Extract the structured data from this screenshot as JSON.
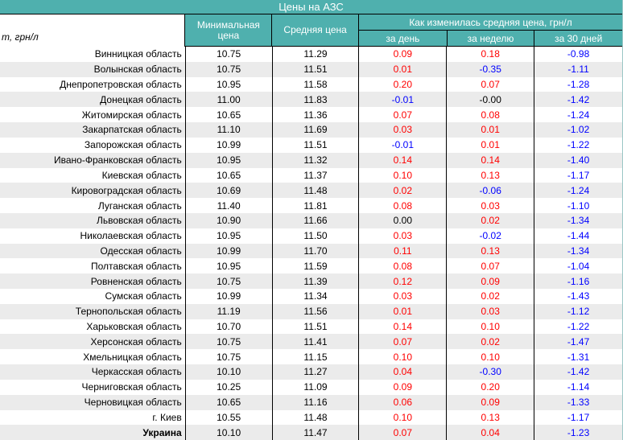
{
  "palette": {
    "teal": "#4fb0ae",
    "stripe": "#ebebeb",
    "positive_change": "#ff0000",
    "negative_change": "#0000ff",
    "zero_change": "#000000",
    "header_text": "#ffffff",
    "border": "#000000"
  },
  "title": "Цены на АЗС",
  "unit_label": "т, грн/л",
  "columns": {
    "min": "Минимальная цена",
    "avg": "Средняя цена",
    "change_group": "Как изменилась средняя цена, грн/л",
    "day": "за день",
    "week": "за неделю",
    "month": "за 30 дней"
  },
  "rows": [
    {
      "name": "Винницкая область",
      "min": "10.75",
      "avg": "11.29",
      "day": "0.09",
      "week": "0.18",
      "month": "-0.98"
    },
    {
      "name": "Волынская область",
      "min": "10.75",
      "avg": "11.51",
      "day": "0.01",
      "week": "-0.35",
      "month": "-1.11"
    },
    {
      "name": "Днепропетровская область",
      "min": "10.95",
      "avg": "11.58",
      "day": "0.20",
      "week": "0.07",
      "month": "-1.28"
    },
    {
      "name": "Донецкая область",
      "min": "11.00",
      "avg": "11.83",
      "day": "-0.01",
      "week": "-0.00",
      "month": "-1.42"
    },
    {
      "name": "Житомирская область",
      "min": "10.65",
      "avg": "11.36",
      "day": "0.07",
      "week": "0.08",
      "month": "-1.24"
    },
    {
      "name": "Закарпатская область",
      "min": "11.10",
      "avg": "11.69",
      "day": "0.03",
      "week": "0.01",
      "month": "-1.02"
    },
    {
      "name": "Запорожская область",
      "min": "10.99",
      "avg": "11.51",
      "day": "-0.01",
      "week": "0.01",
      "month": "-1.22"
    },
    {
      "name": "Ивано-Франковская область",
      "min": "10.95",
      "avg": "11.32",
      "day": "0.14",
      "week": "0.14",
      "month": "-1.40"
    },
    {
      "name": "Киевская область",
      "min": "10.65",
      "avg": "11.37",
      "day": "0.10",
      "week": "0.13",
      "month": "-1.17"
    },
    {
      "name": "Кировоградская область",
      "min": "10.69",
      "avg": "11.48",
      "day": "0.02",
      "week": "-0.06",
      "month": "-1.24"
    },
    {
      "name": "Луганская область",
      "min": "11.40",
      "avg": "11.81",
      "day": "0.08",
      "week": "0.03",
      "month": "-1.10"
    },
    {
      "name": "Львовская область",
      "min": "10.90",
      "avg": "11.66",
      "day": "0.00",
      "week": "0.02",
      "month": "-1.34"
    },
    {
      "name": "Николаевская область",
      "min": "10.95",
      "avg": "11.50",
      "day": "0.03",
      "week": "-0.02",
      "month": "-1.44"
    },
    {
      "name": "Одесская область",
      "min": "10.99",
      "avg": "11.70",
      "day": "0.11",
      "week": "0.13",
      "month": "-1.34"
    },
    {
      "name": "Полтавская область",
      "min": "10.95",
      "avg": "11.59",
      "day": "0.08",
      "week": "0.07",
      "month": "-1.04"
    },
    {
      "name": "Ровненская область",
      "min": "10.75",
      "avg": "11.39",
      "day": "0.12",
      "week": "0.09",
      "month": "-1.16"
    },
    {
      "name": "Сумская область",
      "min": "10.99",
      "avg": "11.34",
      "day": "0.03",
      "week": "0.02",
      "month": "-1.43"
    },
    {
      "name": "Тернопольская область",
      "min": "11.19",
      "avg": "11.56",
      "day": "0.01",
      "week": "0.03",
      "month": "-1.12"
    },
    {
      "name": "Харьковская область",
      "min": "10.70",
      "avg": "11.51",
      "day": "0.14",
      "week": "0.10",
      "month": "-1.22"
    },
    {
      "name": "Херсонская область",
      "min": "10.75",
      "avg": "11.41",
      "day": "0.07",
      "week": "0.02",
      "month": "-1.47"
    },
    {
      "name": "Хмельницкая область",
      "min": "10.75",
      "avg": "11.15",
      "day": "0.10",
      "week": "0.10",
      "month": "-1.31"
    },
    {
      "name": "Черкасская область",
      "min": "10.10",
      "avg": "11.27",
      "day": "0.04",
      "week": "-0.30",
      "month": "-1.42"
    },
    {
      "name": "Черниговская область",
      "min": "10.25",
      "avg": "11.09",
      "day": "0.09",
      "week": "0.20",
      "month": "-1.14"
    },
    {
      "name": "Черновицкая область",
      "min": "10.65",
      "avg": "11.16",
      "day": "0.06",
      "week": "0.09",
      "month": "-1.33"
    },
    {
      "name": "г. Киев",
      "min": "10.55",
      "avg": "11.48",
      "day": "0.10",
      "week": "0.13",
      "month": "-1.17"
    },
    {
      "name": "Украина",
      "min": "10.10",
      "avg": "11.47",
      "day": "0.07",
      "week": "0.04",
      "month": "-1.23",
      "bold": true
    }
  ]
}
